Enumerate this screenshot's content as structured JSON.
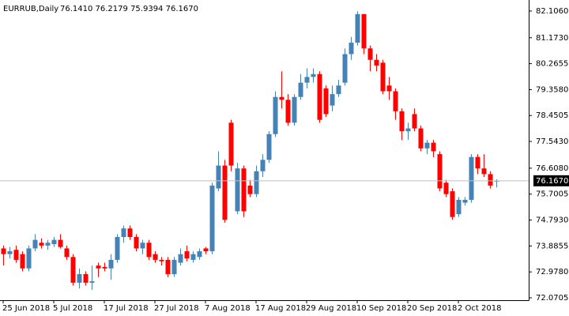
{
  "chart_data": {
    "type": "candlestick",
    "title": "EURRUB,Daily",
    "subtitle": "76.1410 76.2179 75.9394 76.1670",
    "categories": [
      "25 Jun 2018",
      null,
      null,
      null,
      null,
      null,
      null,
      null,
      "5 Jul 2018",
      null,
      null,
      null,
      null,
      null,
      null,
      null,
      "17 Jul 2018",
      null,
      null,
      null,
      null,
      null,
      null,
      null,
      "27 Jul 2018",
      null,
      null,
      null,
      null,
      null,
      null,
      null,
      "7 Aug 2018",
      null,
      null,
      null,
      null,
      null,
      null,
      null,
      "17 Aug 2018",
      null,
      null,
      null,
      null,
      null,
      null,
      null,
      "29 Aug 2018",
      null,
      null,
      null,
      null,
      null,
      null,
      null,
      "10 Sep 2018",
      null,
      null,
      null,
      null,
      null,
      null,
      null,
      "20 Sep 2018",
      null,
      null,
      null,
      null,
      null,
      null,
      null,
      "2 Oct 2018",
      null,
      null,
      null,
      null,
      null,
      null
    ],
    "open": [
      73.8,
      73.6,
      73.75,
      73.6,
      73.1,
      73.8,
      74.0,
      73.9,
      73.95,
      74.1,
      73.8,
      73.5,
      72.6,
      72.9,
      72.6,
      73.2,
      73.15,
      73.1,
      73.4,
      74.2,
      74.5,
      74.2,
      73.8,
      74.0,
      73.6,
      73.4,
      73.4,
      72.9,
      73.3,
      73.7,
      73.4,
      73.5,
      73.8,
      73.7,
      75.9,
      76.7,
      78.2,
      75.1,
      76.6,
      76.0,
      75.7,
      76.5,
      76.9,
      77.8,
      79.1,
      79.0,
      78.2,
      79.1,
      79.6,
      79.8,
      79.9,
      79.4,
      78.8,
      79.2,
      79.6,
      80.6,
      81.0,
      82.0,
      80.8,
      80.4,
      80.3,
      79.5,
      79.3,
      78.6,
      77.9,
      78.5,
      78.0,
      77.3,
      77.5,
      77.1,
      76.1,
      75.8,
      75.0,
      75.4,
      75.5,
      77.0,
      76.6,
      76.4,
      76.141
    ],
    "high": [
      73.9,
      73.85,
      73.9,
      73.7,
      73.9,
      74.3,
      74.15,
      74.1,
      74.2,
      74.3,
      73.9,
      73.6,
      73.1,
      73.0,
      73.2,
      73.3,
      73.3,
      73.6,
      74.3,
      74.6,
      74.6,
      74.3,
      74.1,
      74.1,
      73.7,
      73.5,
      73.5,
      73.5,
      73.8,
      73.9,
      73.7,
      73.8,
      73.85,
      76.1,
      77.2,
      76.9,
      78.3,
      76.8,
      76.7,
      76.2,
      76.7,
      77.1,
      77.9,
      79.3,
      80.0,
      79.2,
      79.2,
      79.9,
      80.1,
      80.1,
      80.0,
      79.5,
      79.5,
      79.7,
      80.8,
      81.2,
      82.1,
      82.0,
      80.9,
      80.6,
      80.4,
      79.8,
      79.4,
      78.7,
      78.2,
      78.7,
      78.1,
      77.6,
      77.6,
      77.2,
      76.2,
      75.9,
      75.6,
      75.6,
      77.1,
      77.1,
      77.1,
      76.5,
      76.2179
    ],
    "low": [
      73.2,
      73.45,
      73.3,
      73.0,
      73.0,
      73.7,
      73.8,
      73.75,
      73.85,
      73.8,
      73.4,
      72.5,
      72.4,
      72.5,
      72.35,
      72.8,
      73.0,
      72.7,
      73.3,
      74.0,
      74.1,
      73.7,
      73.6,
      73.4,
      73.3,
      73.2,
      72.8,
      72.8,
      73.2,
      73.35,
      73.3,
      73.4,
      73.6,
      73.6,
      75.8,
      74.7,
      76.5,
      75.0,
      74.9,
      75.6,
      75.6,
      76.3,
      76.8,
      77.7,
      78.7,
      78.1,
      78.1,
      79.0,
      79.4,
      79.6,
      78.2,
      78.4,
      78.6,
      79.1,
      79.5,
      80.4,
      80.9,
      80.6,
      80.0,
      80.0,
      79.2,
      79.0,
      78.3,
      77.6,
      77.6,
      77.9,
      77.2,
      77.1,
      77.0,
      75.8,
      75.6,
      74.8,
      74.9,
      75.3,
      75.4,
      76.4,
      76.3,
      75.9,
      75.9394
    ],
    "close": [
      73.6,
      73.7,
      73.4,
      73.1,
      73.8,
      74.1,
      73.9,
      74.0,
      74.1,
      73.85,
      73.5,
      72.6,
      72.9,
      72.6,
      72.65,
      73.1,
      73.1,
      73.4,
      74.2,
      74.5,
      74.2,
      73.8,
      74.0,
      73.5,
      73.4,
      73.35,
      72.9,
      73.4,
      73.6,
      73.45,
      73.6,
      73.7,
      73.7,
      76.0,
      76.7,
      74.8,
      76.7,
      76.6,
      75.1,
      75.7,
      76.5,
      76.9,
      77.8,
      79.1,
      79.0,
      78.2,
      79.1,
      79.6,
      79.8,
      79.9,
      78.3,
      78.5,
      79.2,
      79.5,
      80.6,
      81.0,
      82.0,
      80.8,
      80.4,
      80.2,
      79.3,
      79.3,
      78.6,
      77.9,
      78.0,
      78.0,
      77.3,
      77.5,
      77.2,
      75.9,
      75.7,
      74.9,
      75.5,
      75.5,
      77.0,
      76.6,
      76.4,
      76.0,
      76.167
    ],
    "up_color": "#4682b4",
    "down_color": "#ff0000",
    "current_price": {
      "value": 76.167,
      "label": "76.1670"
    },
    "ylim": [
      71.988,
      82.438
    ],
    "yticks": [
      {
        "value": 82.106,
        "label": "82.1060"
      },
      {
        "value": 81.173,
        "label": "81.1730"
      },
      {
        "value": 80.2655,
        "label": "80.2655"
      },
      {
        "value": 79.358,
        "label": "79.3580"
      },
      {
        "value": 78.4505,
        "label": "78.4505"
      },
      {
        "value": 77.543,
        "label": "77.5430"
      },
      {
        "value": 76.608,
        "label": "76.6080"
      },
      {
        "value": 75.7005,
        "label": "75.7005"
      },
      {
        "value": 74.793,
        "label": "74.7930"
      },
      {
        "value": 73.8855,
        "label": "73.8855"
      },
      {
        "value": 72.978,
        "label": "72.9780"
      },
      {
        "value": 72.0705,
        "label": "72.0705"
      }
    ]
  }
}
